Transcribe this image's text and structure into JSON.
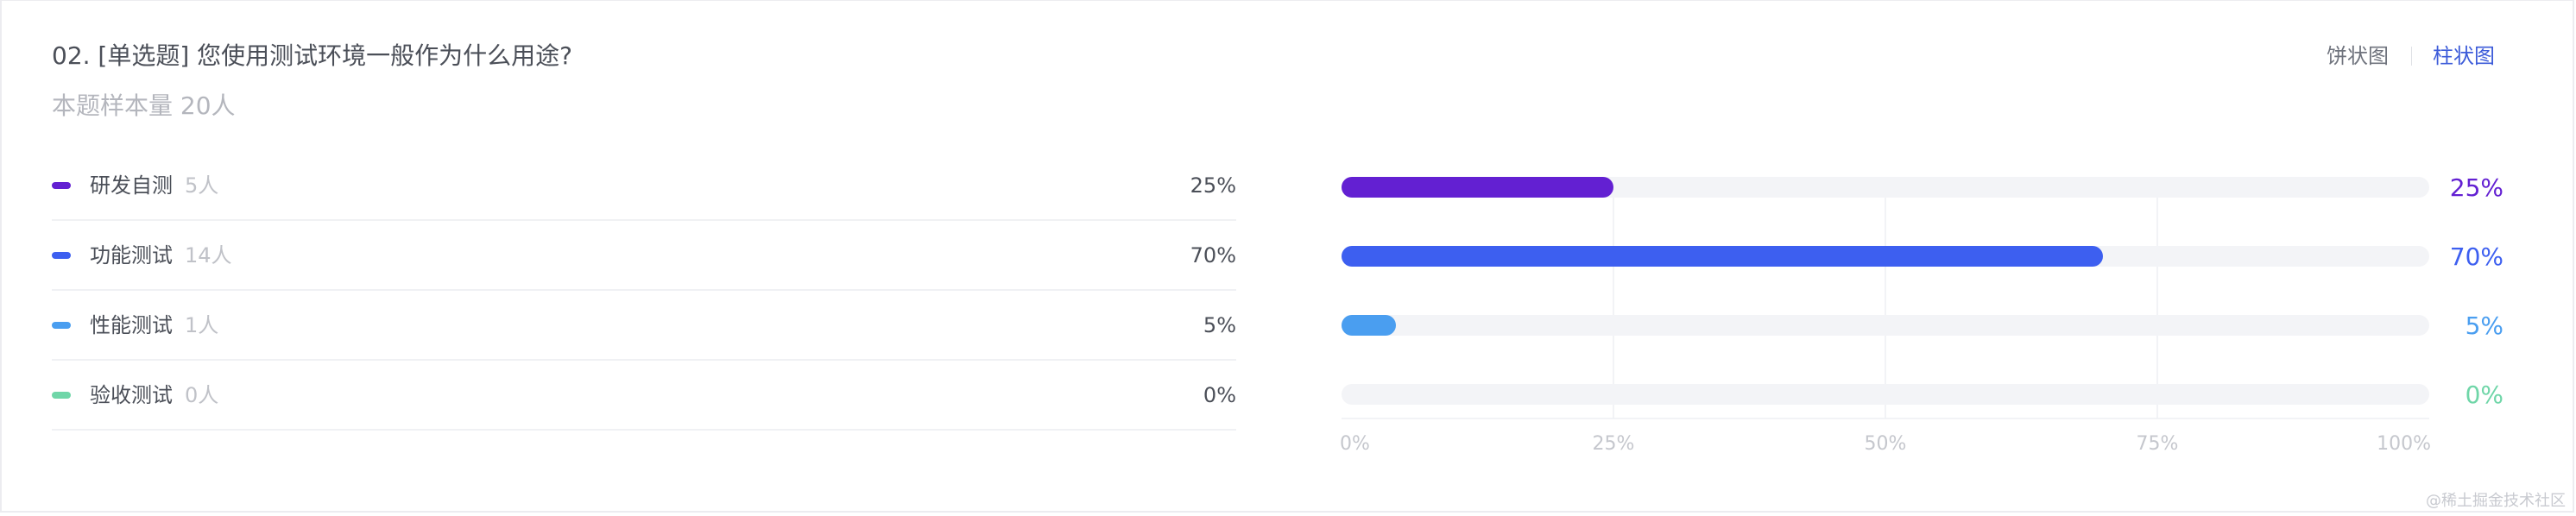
{
  "question": {
    "title": "02. [单选题] 您使用测试环境一般作为什么用途?",
    "sample_size": "本题样本量 20人"
  },
  "view_toggle": {
    "pie_label": "饼状图",
    "bar_label": "柱状图",
    "active": "bar"
  },
  "options": [
    {
      "label": "研发自测",
      "count": "5人",
      "percent": "25%",
      "color": "#6320d2"
    },
    {
      "label": "功能测试",
      "count": "14人",
      "percent": "70%",
      "color": "#3d5ff0"
    },
    {
      "label": "性能测试",
      "count": "1人",
      "percent": "5%",
      "color": "#4a9ef0"
    },
    {
      "label": "验收测试",
      "count": "0人",
      "percent": "0%",
      "color": "#6fd6a8"
    }
  ],
  "chart_data": {
    "type": "bar",
    "orientation": "horizontal",
    "categories": [
      "研发自测",
      "功能测试",
      "性能测试",
      "验收测试"
    ],
    "values": [
      25,
      70,
      5,
      0
    ],
    "value_labels": [
      "25%",
      "70%",
      "5%",
      "0%"
    ],
    "colors": [
      "#6320d2",
      "#3d5ff0",
      "#4a9ef0",
      "#6fd6a8"
    ],
    "track_color": "#f3f4f7",
    "grid_color": "#edeff3",
    "axis_label_color": "#c5c7cd",
    "xlim": [
      0,
      100
    ],
    "x_ticks": [
      0,
      25,
      50,
      75,
      100
    ],
    "x_tick_labels": [
      "0%",
      "25%",
      "50%",
      "75%",
      "100%"
    ],
    "grid": true,
    "title": "",
    "xlabel": "",
    "ylabel": ""
  },
  "watermark": "@稀土掘金技术社区"
}
